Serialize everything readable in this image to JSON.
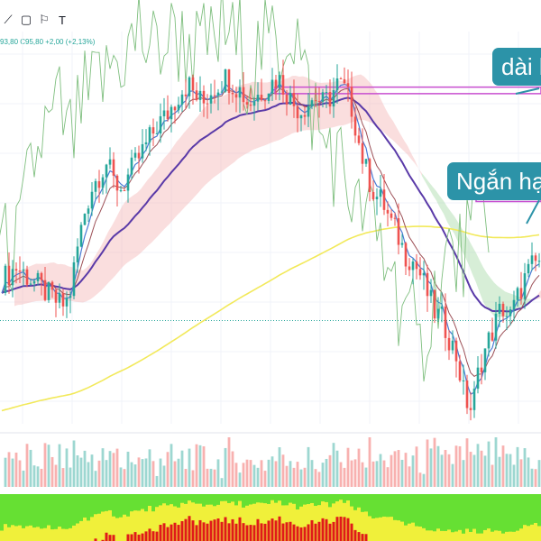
{
  "toolbar": {
    "icons": [
      "trend-line-icon",
      "rectangle-icon",
      "comment-icon",
      "text-icon"
    ],
    "glyphs": [
      "⟋",
      "▢",
      "⚐",
      "T"
    ]
  },
  "legend": {
    "ohlc_text": "93,80  C95,80  +2,00 (+2,13%)"
  },
  "annotations": {
    "long_term_label": "dài h",
    "short_term_label": "Ngắn hạn"
  },
  "colors": {
    "up": "#26a69a",
    "down": "#ef5350",
    "ema_short": "#4a7bd6",
    "ema_mid": "#9c4f56",
    "ma_long": "#5a3aa8",
    "ma200": "#f2e95a",
    "lagging": "#7fbf7f",
    "cloud_bull": "#a6d9a6",
    "cloud_bear": "#f4b6b6",
    "zone": "#c84fd0",
    "callout": "#2c93a8",
    "osc_green": "#66e033",
    "osc_yellow": "#f0f03a",
    "osc_red": "#e01a1a"
  },
  "chart_data": {
    "type": "candlestick",
    "title": "",
    "xlabel": "",
    "ylabel": "",
    "ylim": [
      48,
      108
    ],
    "current_price": 95.8,
    "change": 2.0,
    "change_pct": 2.13,
    "price_path": [
      70,
      71,
      72,
      71,
      70,
      69,
      68,
      67,
      66,
      67,
      74,
      80,
      84,
      86,
      88,
      85,
      84,
      86,
      88,
      90,
      92,
      94,
      95,
      97,
      99,
      100,
      98,
      97,
      99,
      100,
      101,
      100,
      99,
      97,
      98,
      99,
      100,
      101,
      99,
      97,
      96,
      97,
      98,
      97,
      98,
      100,
      99,
      96,
      90,
      86,
      83,
      82,
      79,
      77,
      74,
      73,
      71,
      68,
      65,
      64,
      61,
      58,
      52,
      50,
      57,
      60,
      63,
      66,
      64,
      67,
      70,
      72,
      73
    ],
    "resistance_zone_1": [
      98.5,
      99.5
    ],
    "resistance_zone_2": [
      82.0,
      82.8
    ],
    "volume_max": 100,
    "oscillator_levels": "green / yellow / red heat bands"
  }
}
